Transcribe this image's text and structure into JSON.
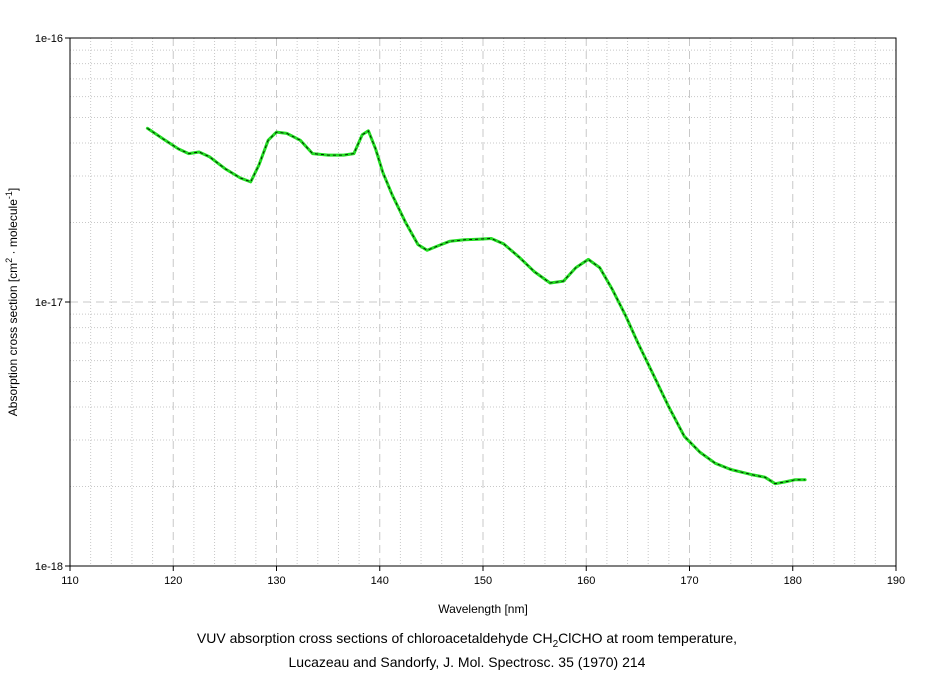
{
  "chart_data": {
    "type": "line",
    "xlabel": "Wavelength [nm]",
    "ylabel": {
      "prefix": "Absorption cross section [cm",
      "sup1": "2",
      "middle": " · molecule",
      "sup2": "-1",
      "suffix": "]"
    },
    "xlim": [
      110,
      190
    ],
    "ylim": [
      1e-18,
      1e-16
    ],
    "yscale": "log",
    "grid": true,
    "x_ticks": [
      110,
      120,
      130,
      140,
      150,
      160,
      170,
      180,
      190
    ],
    "x_tick_labels": [
      "110",
      "120",
      "130",
      "140",
      "150",
      "160",
      "170",
      "180",
      "190"
    ],
    "y_ticks": [
      1e-18,
      1e-17,
      1e-16
    ],
    "y_tick_labels": [
      "1e-18",
      "1e-17",
      "1e-16"
    ],
    "series": [
      {
        "color": "#22dd22",
        "x": [
          117.5,
          119,
          120.5,
          121.5,
          122.5,
          123.5,
          125,
          126.5,
          127.5,
          128.3,
          129.2,
          130,
          131,
          132.3,
          133.5,
          135,
          136.5,
          137.5,
          138.3,
          138.9,
          139.6,
          140.3,
          141.2,
          142.5,
          143.7,
          144.6,
          145.6,
          146.8,
          148.2,
          149.5,
          150.8,
          152,
          153.5,
          155,
          156.5,
          157.8,
          159,
          160.2,
          161.3,
          162.5,
          163.8,
          165,
          166.5,
          168,
          169.5,
          171,
          172.5,
          174,
          176,
          177.3,
          178.3,
          179.2,
          180.2,
          181.2
        ],
        "y": [
          4.55e-17,
          4.15e-17,
          3.8e-17,
          3.65e-17,
          3.7e-17,
          3.55e-17,
          3.2e-17,
          2.95e-17,
          2.85e-17,
          3.3e-17,
          4.1e-17,
          4.4e-17,
          4.35e-17,
          4.1e-17,
          3.65e-17,
          3.6e-17,
          3.6e-17,
          3.65e-17,
          4.3e-17,
          4.45e-17,
          3.8e-17,
          3.1e-17,
          2.55e-17,
          2e-17,
          1.65e-17,
          1.57e-17,
          1.63e-17,
          1.7e-17,
          1.72e-17,
          1.73e-17,
          1.74e-17,
          1.66e-17,
          1.48e-17,
          1.3e-17,
          1.18e-17,
          1.2e-17,
          1.35e-17,
          1.45e-17,
          1.35e-17,
          1.12e-17,
          8.9e-18,
          7e-18,
          5.3e-18,
          4e-18,
          3.1e-18,
          2.7e-18,
          2.45e-18,
          2.32e-18,
          2.22e-18,
          2.17e-18,
          2.05e-18,
          2.08e-18,
          2.12e-18,
          2.12e-18
        ]
      }
    ]
  },
  "caption": {
    "line1_prefix": "VUV absorption cross sections of chloroacetaldehyde CH",
    "line1_sub": "2",
    "line1_suffix": "ClCHO at room temperature,",
    "line2": "Lucazeau and Sandorfy, J. Mol. Spectrosc. 35 (1970) 214"
  }
}
